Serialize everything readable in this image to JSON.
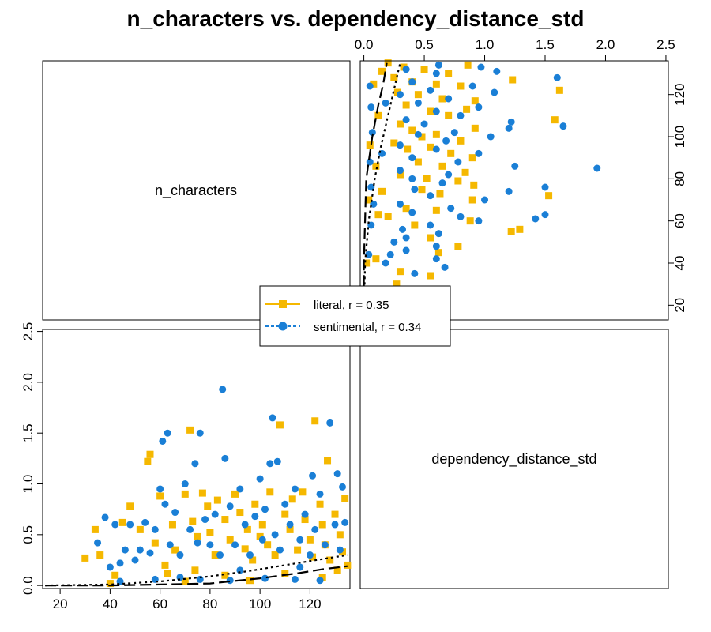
{
  "chart_data": {
    "type": "scatter",
    "title": "n_characters vs. dependency_distance_std",
    "variables": [
      "n_characters",
      "dependency_distance_std"
    ],
    "ranges": {
      "n_characters": [
        13,
        136
      ],
      "dependency_distance_std": [
        -0.03,
        2.52
      ]
    },
    "ticks": {
      "n_characters": [
        20,
        40,
        60,
        80,
        100,
        120
      ],
      "dependency_distance_std": [
        0.0,
        0.5,
        1.0,
        1.5,
        2.0,
        2.5
      ]
    },
    "tick_labels": {
      "n_characters": [
        "20",
        "40",
        "60",
        "80",
        "100",
        "120"
      ],
      "dependency_distance_std": [
        "0.0",
        "0.5",
        "1.0",
        "1.5",
        "2.0",
        "2.5"
      ]
    },
    "legend": {
      "position": "center",
      "entries": [
        {
          "label": "literal, r = 0.35",
          "color": "#f5b800",
          "marker": "square",
          "line": "solid"
        },
        {
          "label": "sentimental, r = 0.34",
          "color": "#1a7fd6",
          "marker": "circle",
          "line": "dashed"
        }
      ]
    },
    "series": [
      {
        "name": "literal",
        "color": "#f5b800",
        "marker": "square",
        "points": [
          [
            34,
            0.55
          ],
          [
            36,
            0.3
          ],
          [
            45,
            0.62
          ],
          [
            48,
            0.78
          ],
          [
            52,
            0.55
          ],
          [
            55,
            1.22
          ],
          [
            56,
            1.29
          ],
          [
            58,
            0.42
          ],
          [
            60,
            0.88
          ],
          [
            62,
            0.2
          ],
          [
            65,
            0.6
          ],
          [
            66,
            0.35
          ],
          [
            70,
            0.9
          ],
          [
            72,
            1.53
          ],
          [
            73,
            0.63
          ],
          [
            74,
            0.15
          ],
          [
            75,
            0.48
          ],
          [
            77,
            0.91
          ],
          [
            79,
            0.78
          ],
          [
            80,
            0.52
          ],
          [
            82,
            0.3
          ],
          [
            83,
            0.84
          ],
          [
            86,
            0.65
          ],
          [
            88,
            0.45
          ],
          [
            90,
            0.9
          ],
          [
            92,
            0.72
          ],
          [
            94,
            0.36
          ],
          [
            95,
            0.55
          ],
          [
            97,
            0.25
          ],
          [
            98,
            0.8
          ],
          [
            100,
            0.48
          ],
          [
            101,
            0.6
          ],
          [
            103,
            0.4
          ],
          [
            104,
            0.92
          ],
          [
            106,
            0.3
          ],
          [
            108,
            1.58
          ],
          [
            110,
            0.7
          ],
          [
            112,
            0.55
          ],
          [
            113,
            0.85
          ],
          [
            115,
            0.35
          ],
          [
            117,
            0.92
          ],
          [
            118,
            0.65
          ],
          [
            120,
            0.45
          ],
          [
            121,
            0.28
          ],
          [
            122,
            1.62
          ],
          [
            124,
            0.8
          ],
          [
            125,
            0.6
          ],
          [
            126,
            0.4
          ],
          [
            127,
            1.23
          ],
          [
            128,
            0.25
          ],
          [
            130,
            0.7
          ],
          [
            131,
            0.15
          ],
          [
            132,
            0.5
          ],
          [
            133,
            0.33
          ],
          [
            134,
            0.86
          ],
          [
            135,
            0.2
          ],
          [
            30,
            0.27
          ],
          [
            42,
            0.1
          ],
          [
            63,
            0.12
          ],
          [
            86,
            0.1
          ],
          [
            110,
            0.12
          ],
          [
            125,
            0.08
          ],
          [
            96,
            0.05
          ],
          [
            70,
            0.04
          ],
          [
            40,
            0.02
          ]
        ],
        "smooth": [
          [
            14,
            0.0
          ],
          [
            40,
            0.0
          ],
          [
            60,
            0.01
          ],
          [
            80,
            0.02
          ],
          [
            100,
            0.07
          ],
          [
            115,
            0.12
          ],
          [
            125,
            0.16
          ],
          [
            135,
            0.19
          ]
        ]
      },
      {
        "name": "sentimental",
        "color": "#1a7fd6",
        "marker": "circle",
        "points": [
          [
            35,
            0.42
          ],
          [
            38,
            0.67
          ],
          [
            40,
            0.18
          ],
          [
            42,
            0.6
          ],
          [
            44,
            0.22
          ],
          [
            46,
            0.35
          ],
          [
            48,
            0.6
          ],
          [
            50,
            0.25
          ],
          [
            52,
            0.35
          ],
          [
            54,
            0.62
          ],
          [
            56,
            0.32
          ],
          [
            58,
            0.55
          ],
          [
            60,
            0.95
          ],
          [
            61,
            1.42
          ],
          [
            62,
            0.8
          ],
          [
            63,
            1.5
          ],
          [
            64,
            0.4
          ],
          [
            66,
            0.72
          ],
          [
            68,
            0.3
          ],
          [
            70,
            1.0
          ],
          [
            72,
            0.55
          ],
          [
            74,
            1.2
          ],
          [
            75,
            0.42
          ],
          [
            76,
            1.5
          ],
          [
            78,
            0.65
          ],
          [
            80,
            0.4
          ],
          [
            82,
            0.7
          ],
          [
            84,
            0.3
          ],
          [
            85,
            1.93
          ],
          [
            86,
            1.25
          ],
          [
            88,
            0.78
          ],
          [
            90,
            0.4
          ],
          [
            92,
            0.95
          ],
          [
            94,
            0.6
          ],
          [
            96,
            0.3
          ],
          [
            98,
            0.68
          ],
          [
            100,
            1.05
          ],
          [
            101,
            0.45
          ],
          [
            102,
            0.75
          ],
          [
            104,
            1.2
          ],
          [
            105,
            1.65
          ],
          [
            106,
            0.5
          ],
          [
            107,
            1.22
          ],
          [
            108,
            0.35
          ],
          [
            110,
            0.8
          ],
          [
            112,
            0.6
          ],
          [
            114,
            0.95
          ],
          [
            116,
            0.45
          ],
          [
            118,
            0.7
          ],
          [
            120,
            0.3
          ],
          [
            121,
            1.08
          ],
          [
            122,
            0.55
          ],
          [
            124,
            0.9
          ],
          [
            126,
            0.4
          ],
          [
            128,
            1.6
          ],
          [
            130,
            0.6
          ],
          [
            131,
            1.1
          ],
          [
            132,
            0.35
          ],
          [
            133,
            0.97
          ],
          [
            134,
            0.62
          ],
          [
            44,
            0.04
          ],
          [
            58,
            0.06
          ],
          [
            68,
            0.08
          ],
          [
            76,
            0.06
          ],
          [
            88,
            0.05
          ],
          [
            102,
            0.07
          ],
          [
            114,
            0.06
          ],
          [
            124,
            0.05
          ],
          [
            92,
            0.15
          ],
          [
            116,
            0.18
          ]
        ],
        "smooth": [
          [
            14,
            0.0
          ],
          [
            40,
            0.01
          ],
          [
            60,
            0.04
          ],
          [
            80,
            0.09
          ],
          [
            95,
            0.14
          ],
          [
            110,
            0.2
          ],
          [
            125,
            0.26
          ],
          [
            135,
            0.3
          ]
        ]
      }
    ]
  }
}
